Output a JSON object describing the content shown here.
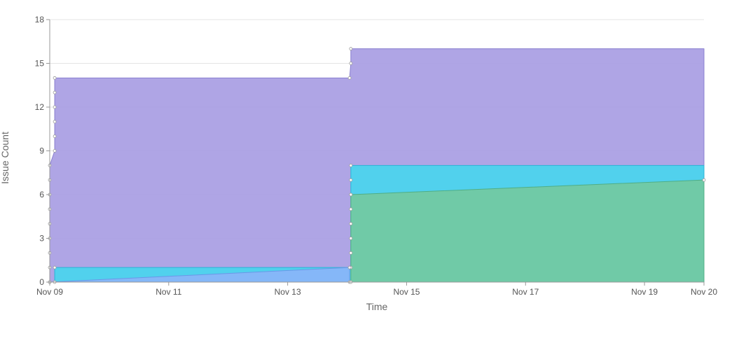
{
  "chart_data": {
    "type": "area",
    "stacked": false,
    "xlabel": "Time",
    "ylabel": "Issue Count",
    "x_range": [
      "2023-11-09T00:00:00",
      "2023-11-20T00:00:00"
    ],
    "ylim": [
      0,
      18
    ],
    "y_ticks": [
      0,
      3,
      6,
      9,
      12,
      15,
      18
    ],
    "x_ticks": [
      {
        "date": "2023-11-09T00:00:00",
        "label": "Nov 09"
      },
      {
        "date": "2023-11-11T00:00:00",
        "label": "Nov 11"
      },
      {
        "date": "2023-11-13T00:00:00",
        "label": "Nov 13"
      },
      {
        "date": "2023-11-15T00:00:00",
        "label": "Nov 15"
      },
      {
        "date": "2023-11-17T00:00:00",
        "label": "Nov 17"
      },
      {
        "date": "2023-11-19T00:00:00",
        "label": "Nov 19"
      },
      {
        "date": "2023-11-20T00:00:00",
        "label": "Nov 20"
      }
    ],
    "grid": true,
    "legend": "none",
    "series": [
      {
        "color": "#a89de3",
        "stroke": "#8a80cf",
        "points": [
          [
            "2023-11-09T00:00:00",
            0
          ],
          [
            "2023-11-09T00:00:00",
            1
          ],
          [
            "2023-11-09T00:00:00",
            2
          ],
          [
            "2023-11-09T00:00:00",
            3
          ],
          [
            "2023-11-09T00:00:00",
            4
          ],
          [
            "2023-11-09T00:00:00",
            5
          ],
          [
            "2023-11-09T00:00:00",
            6
          ],
          [
            "2023-11-09T00:00:00",
            7
          ],
          [
            "2023-11-09T00:00:00",
            8
          ],
          [
            "2023-11-09T02:00:00",
            9
          ],
          [
            "2023-11-09T02:00:00",
            10
          ],
          [
            "2023-11-09T02:00:00",
            11
          ],
          [
            "2023-11-09T02:00:00",
            12
          ],
          [
            "2023-11-09T02:00:00",
            13
          ],
          [
            "2023-11-09T02:00:00",
            14
          ],
          [
            "2023-11-14T01:00:00",
            14
          ],
          [
            "2023-11-14T01:30:00",
            15
          ],
          [
            "2023-11-14T01:30:00",
            16
          ],
          [
            "2023-11-20T00:00:00",
            16
          ]
        ]
      },
      {
        "color": "#49d5ee",
        "stroke": "#2ab4d6",
        "points": [
          [
            "2023-11-09T02:00:00",
            0
          ],
          [
            "2023-11-09T02:00:00",
            1
          ],
          [
            "2023-11-14T01:00:00",
            1
          ],
          [
            "2023-11-14T01:30:00",
            1
          ],
          [
            "2023-11-14T01:30:00",
            2
          ],
          [
            "2023-11-14T01:30:00",
            3
          ],
          [
            "2023-11-14T01:30:00",
            4
          ],
          [
            "2023-11-14T01:30:00",
            5
          ],
          [
            "2023-11-14T01:30:00",
            6
          ],
          [
            "2023-11-14T01:30:00",
            7
          ],
          [
            "2023-11-14T01:30:00",
            8
          ],
          [
            "2023-11-20T00:00:00",
            8
          ]
        ]
      },
      {
        "color": "#8ab4f8",
        "stroke": "#6a98e8",
        "points": [
          [
            "2023-11-09T00:00:00",
            0
          ],
          [
            "2023-11-14T01:00:00",
            1
          ],
          [
            "2023-11-14T01:00:00",
            0
          ]
        ]
      },
      {
        "color": "#73c9a1",
        "stroke": "#4fae86",
        "points": [
          [
            "2023-11-14T01:30:00",
            0
          ],
          [
            "2023-11-14T01:30:00",
            6
          ],
          [
            "2023-11-20T00:00:00",
            7
          ],
          [
            "2023-11-20T00:00:00",
            0
          ]
        ]
      }
    ]
  }
}
